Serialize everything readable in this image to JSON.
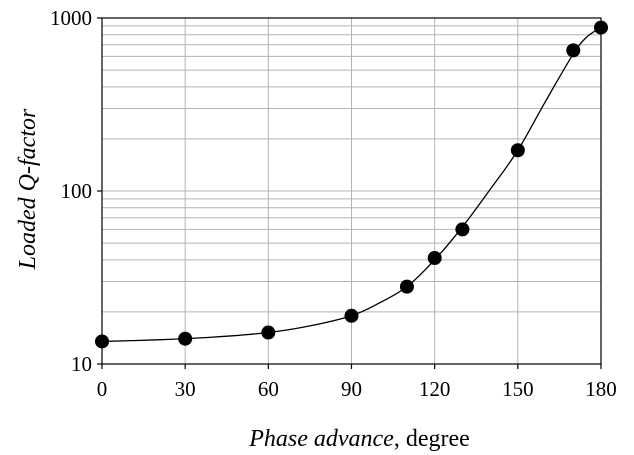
{
  "chart_data": {
    "type": "scatter",
    "title": "",
    "xlabel_italic": "Phase advance",
    "xlabel_rest": ", degree",
    "ylabel": "Loaded Q-factor",
    "xlim": [
      0,
      180
    ],
    "ylim": [
      10,
      1000
    ],
    "y_scale": "log",
    "grid": true,
    "x_ticks": [
      0,
      30,
      60,
      90,
      120,
      150,
      180
    ],
    "x_tick_labels": [
      "0",
      "30",
      "60",
      "90",
      "120",
      "150",
      "180"
    ],
    "y_ticks": [
      10,
      100,
      1000
    ],
    "y_tick_labels": [
      "10",
      "100",
      "1000"
    ],
    "series": [
      {
        "points": [
          {
            "x": 0,
            "y": 13.5
          },
          {
            "x": 30,
            "y": 14
          },
          {
            "x": 60,
            "y": 15.2
          },
          {
            "x": 90,
            "y": 19
          },
          {
            "x": 110,
            "y": 28
          },
          {
            "x": 120,
            "y": 41
          },
          {
            "x": 130,
            "y": 60
          },
          {
            "x": 150,
            "y": 172
          },
          {
            "x": 170,
            "y": 650
          },
          {
            "x": 180,
            "y": 880
          }
        ],
        "marker": "filled-circle",
        "color": "#000000"
      }
    ],
    "trend_curve": [
      [
        0,
        13.5
      ],
      [
        20,
        13.8
      ],
      [
        40,
        14.3
      ],
      [
        60,
        15.2
      ],
      [
        75,
        16.6
      ],
      [
        90,
        19
      ],
      [
        100,
        22.5
      ],
      [
        110,
        28
      ],
      [
        120,
        40
      ],
      [
        130,
        62
      ],
      [
        140,
        102
      ],
      [
        150,
        172
      ],
      [
        160,
        330
      ],
      [
        170,
        620
      ],
      [
        175,
        780
      ],
      [
        180,
        880
      ]
    ],
    "line_color": "#000000",
    "grid_color": "#b3b3b3"
  }
}
